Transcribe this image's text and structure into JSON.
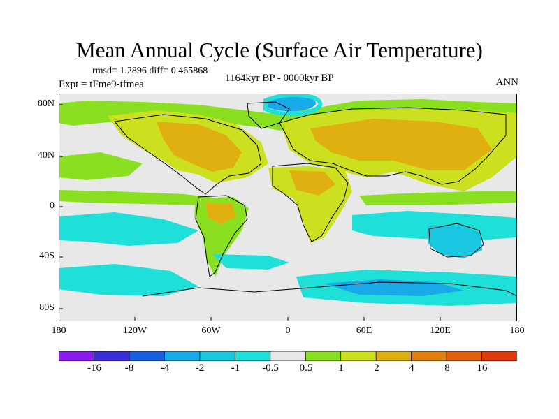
{
  "title": "Mean Annual Cycle (Surface Air Temperature)",
  "stats": "rmsd= 1.2896 diff= 0.465868",
  "left_label": "Expt = tFme9-tfmea",
  "center_label": "1164kyr BP - 0000kyr BP",
  "right_label": "ANN",
  "lat_labels": [
    "80N",
    "40N",
    "0",
    "40S",
    "80S"
  ],
  "lon_labels": [
    "180",
    "120W",
    "60W",
    "0",
    "60E",
    "120E",
    "180"
  ],
  "colorbar": {
    "labels": [
      "-16",
      "-8",
      "-4",
      "-2",
      "-1",
      "-0.5",
      "0.5",
      "1",
      "2",
      "4",
      "8",
      "16"
    ],
    "colors": [
      "#8a1cf0",
      "#3a2ed8",
      "#1a5ee0",
      "#19a8e8",
      "#19c8e0",
      "#1ee0d8",
      "#e8e8e8",
      "#8ae020",
      "#cce020",
      "#e0b010",
      "#e08010",
      "#e06010",
      "#e03a10"
    ]
  },
  "colors": {
    "ocean_neutral": "#e8e8e8",
    "warm_green": "#8ae020",
    "warm_yellowgreen": "#cce020",
    "warm_orange": "#e0b010",
    "cool_cyan": "#1ee0d8",
    "cool_light_blue": "#19c8e0",
    "cool_blue": "#19a8e8",
    "coastline": "#000000"
  }
}
